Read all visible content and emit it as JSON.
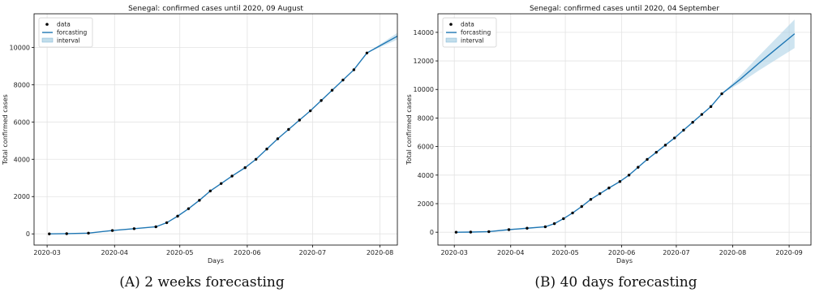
{
  "chart_data": [
    {
      "type": "line",
      "title": "Senegal: confirmed cases until 2020, 09 August",
      "xlabel": "Days",
      "ylabel": "Total confirmed cases",
      "xlim": [
        "2020-02-24",
        "2020-08-09"
      ],
      "ylim": [
        -600,
        11800
      ],
      "x_ticks": [
        "2020-03",
        "2020-04",
        "2020-05",
        "2020-06",
        "2020-07",
        "2020-08"
      ],
      "y_ticks": [
        0,
        2000,
        4000,
        6000,
        8000,
        10000
      ],
      "grid": true,
      "legend_position": "top-left",
      "legend": [
        "data",
        "forcasting",
        "interval"
      ],
      "series": [
        {
          "name": "data",
          "style": "points",
          "color": "#000000",
          "x": [
            "2020-03-02",
            "2020-03-10",
            "2020-03-20",
            "2020-03-31",
            "2020-04-10",
            "2020-04-20",
            "2020-04-25",
            "2020-04-30",
            "2020-05-05",
            "2020-05-10",
            "2020-05-15",
            "2020-05-20",
            "2020-05-25",
            "2020-05-31",
            "2020-06-05",
            "2020-06-10",
            "2020-06-15",
            "2020-06-20",
            "2020-06-25",
            "2020-06-30",
            "2020-07-05",
            "2020-07-10",
            "2020-07-15",
            "2020-07-20",
            "2020-07-26"
          ],
          "y": [
            0,
            10,
            40,
            180,
            280,
            380,
            600,
            950,
            1350,
            1800,
            2300,
            2700,
            3100,
            3550,
            4000,
            4550,
            5100,
            5600,
            6100,
            6600,
            7150,
            7700,
            8250,
            8800,
            9700
          ]
        },
        {
          "name": "forcasting",
          "style": "line",
          "color": "#1f77b4",
          "x": [
            "2020-03-02",
            "2020-03-10",
            "2020-03-20",
            "2020-03-31",
            "2020-04-10",
            "2020-04-20",
            "2020-04-25",
            "2020-04-30",
            "2020-05-05",
            "2020-05-10",
            "2020-05-15",
            "2020-05-20",
            "2020-05-25",
            "2020-05-31",
            "2020-06-05",
            "2020-06-10",
            "2020-06-15",
            "2020-06-20",
            "2020-06-25",
            "2020-06-30",
            "2020-07-05",
            "2020-07-10",
            "2020-07-15",
            "2020-07-20",
            "2020-07-26",
            "2020-08-02",
            "2020-08-09"
          ],
          "y": [
            0,
            10,
            40,
            180,
            280,
            380,
            600,
            950,
            1350,
            1800,
            2300,
            2700,
            3100,
            3550,
            4000,
            4550,
            5100,
            5600,
            6100,
            6600,
            7150,
            7700,
            8250,
            8800,
            9700,
            10150,
            10600
          ]
        },
        {
          "name": "interval",
          "style": "band",
          "color": "#a6cee3",
          "x": [
            "2020-07-26",
            "2020-08-02",
            "2020-08-09"
          ],
          "lower": [
            9700,
            10060,
            10420
          ],
          "upper": [
            9700,
            10240,
            10780
          ]
        }
      ]
    },
    {
      "type": "line",
      "title": "Senegal: confirmed cases until 2020, 04 September",
      "xlabel": "Days",
      "ylabel": "Total confirmed cases",
      "xlim": [
        "2020-02-21",
        "2020-09-13"
      ],
      "ylim": [
        -900,
        15300
      ],
      "x_ticks": [
        "2020-03",
        "2020-04",
        "2020-05",
        "2020-06",
        "2020-07",
        "2020-08",
        "2020-09"
      ],
      "y_ticks": [
        0,
        2000,
        4000,
        6000,
        8000,
        10000,
        12000,
        14000
      ],
      "grid": true,
      "legend_position": "top-left",
      "legend": [
        "data",
        "forcasting",
        "interval"
      ],
      "series": [
        {
          "name": "data",
          "style": "points",
          "color": "#000000",
          "x": [
            "2020-03-02",
            "2020-03-10",
            "2020-03-20",
            "2020-03-31",
            "2020-04-10",
            "2020-04-20",
            "2020-04-25",
            "2020-04-30",
            "2020-05-05",
            "2020-05-10",
            "2020-05-15",
            "2020-05-20",
            "2020-05-25",
            "2020-05-31",
            "2020-06-05",
            "2020-06-10",
            "2020-06-15",
            "2020-06-20",
            "2020-06-25",
            "2020-06-30",
            "2020-07-05",
            "2020-07-10",
            "2020-07-15",
            "2020-07-20",
            "2020-07-26"
          ],
          "y": [
            0,
            10,
            40,
            180,
            280,
            380,
            600,
            950,
            1350,
            1800,
            2300,
            2700,
            3100,
            3550,
            4000,
            4550,
            5100,
            5600,
            6100,
            6600,
            7150,
            7700,
            8250,
            8800,
            9700
          ]
        },
        {
          "name": "forcasting",
          "style": "line",
          "color": "#1f77b4",
          "x": [
            "2020-03-02",
            "2020-03-10",
            "2020-03-20",
            "2020-03-31",
            "2020-04-10",
            "2020-04-20",
            "2020-04-25",
            "2020-04-30",
            "2020-05-05",
            "2020-05-10",
            "2020-05-15",
            "2020-05-20",
            "2020-05-25",
            "2020-05-31",
            "2020-06-05",
            "2020-06-10",
            "2020-06-15",
            "2020-06-20",
            "2020-06-25",
            "2020-06-30",
            "2020-07-05",
            "2020-07-10",
            "2020-07-15",
            "2020-07-20",
            "2020-07-26",
            "2020-08-05",
            "2020-08-15",
            "2020-08-25",
            "2020-09-04"
          ],
          "y": [
            0,
            10,
            40,
            180,
            280,
            380,
            600,
            950,
            1350,
            1800,
            2300,
            2700,
            3100,
            3550,
            4000,
            4550,
            5100,
            5600,
            6100,
            6600,
            7150,
            7700,
            8250,
            8800,
            9700,
            10700,
            11800,
            12850,
            13900
          ]
        },
        {
          "name": "interval",
          "style": "band",
          "color": "#a6cee3",
          "x": [
            "2020-07-26",
            "2020-08-05",
            "2020-08-15",
            "2020-08-25",
            "2020-09-04"
          ],
          "lower": [
            9700,
            10450,
            11300,
            12100,
            12900
          ],
          "upper": [
            9700,
            10950,
            12300,
            13600,
            14900
          ]
        }
      ]
    }
  ],
  "captions": [
    {
      "label": "(A)",
      "text": "2 weeks forecasting"
    },
    {
      "label": "(B)",
      "text": "40 days forecasting"
    }
  ]
}
